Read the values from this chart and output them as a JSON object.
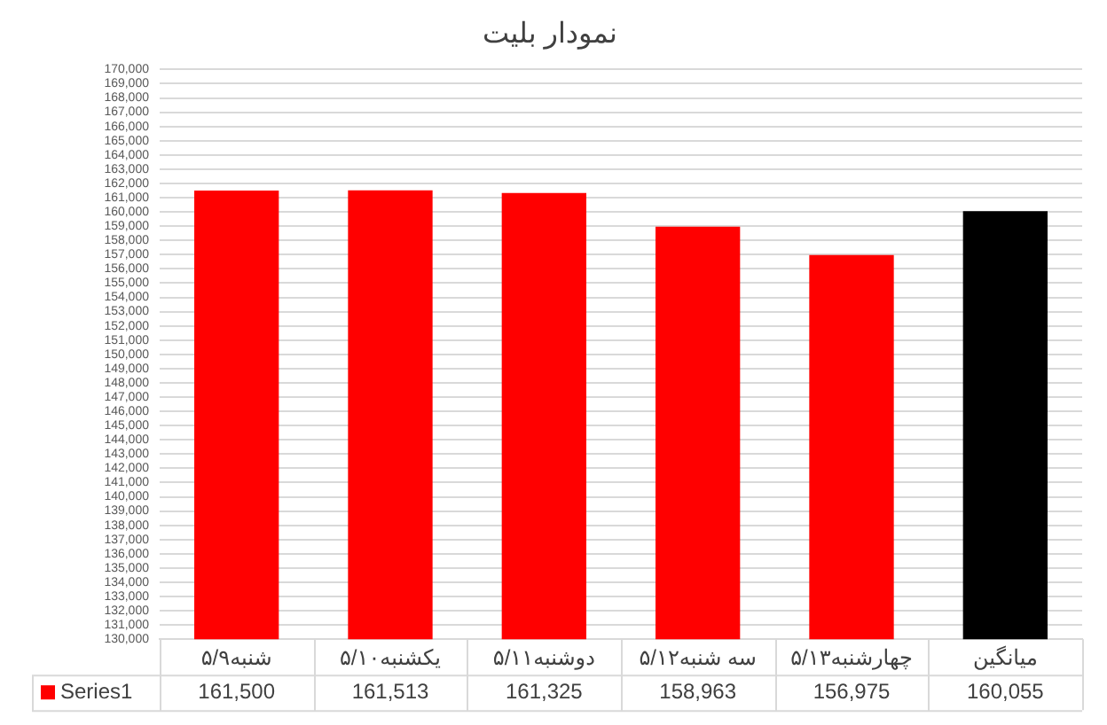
{
  "chart_data": {
    "type": "bar",
    "title": "نمودار بلیت",
    "categories": [
      "شنبه۵/۹",
      "یکشنبه۵/۱۰",
      "دوشنبه۵/۱۱",
      "سه شنبه۵/۱۲",
      "چهارشنبه۵/۱۳",
      "میانگین"
    ],
    "series": [
      {
        "name": "Series1",
        "colors": [
          "#ff0000",
          "#ff0000",
          "#ff0000",
          "#ff0000",
          "#ff0000",
          "#000000"
        ],
        "values": [
          161500,
          161513,
          161325,
          158963,
          156975,
          160055
        ],
        "value_labels": [
          "161,500",
          "161,513",
          "161,325",
          "158,963",
          "156,975",
          "160,055"
        ]
      }
    ],
    "ylim": [
      130000,
      170000
    ],
    "yticks": [
      {
        "value": 130000,
        "label": "130,000"
      },
      {
        "value": 131000,
        "label": "131,000"
      },
      {
        "value": 132000,
        "label": "132,000"
      },
      {
        "value": 133000,
        "label": "133,000"
      },
      {
        "value": 134000,
        "label": "134,000"
      },
      {
        "value": 135000,
        "label": "135,000"
      },
      {
        "value": 136000,
        "label": "136,000"
      },
      {
        "value": 137000,
        "label": "137,000"
      },
      {
        "value": 138000,
        "label": "138,000"
      },
      {
        "value": 139000,
        "label": "139,000"
      },
      {
        "value": 140000,
        "label": "140,000"
      },
      {
        "value": 141000,
        "label": "141,000"
      },
      {
        "value": 142000,
        "label": "142,000"
      },
      {
        "value": 143000,
        "label": "143,000"
      },
      {
        "value": 144000,
        "label": "144,000"
      },
      {
        "value": 145000,
        "label": "145,000"
      },
      {
        "value": 146000,
        "label": "146,000"
      },
      {
        "value": 147000,
        "label": "147,000"
      },
      {
        "value": 148000,
        "label": "148,000"
      },
      {
        "value": 149000,
        "label": "149,000"
      },
      {
        "value": 150000,
        "label": "150,000"
      },
      {
        "value": 151000,
        "label": "151,000"
      },
      {
        "value": 152000,
        "label": "152,000"
      },
      {
        "value": 153000,
        "label": "153,000"
      },
      {
        "value": 154000,
        "label": "154,000"
      },
      {
        "value": 155000,
        "label": "155,000"
      },
      {
        "value": 156000,
        "label": "156,000"
      },
      {
        "value": 157000,
        "label": "157,000"
      },
      {
        "value": 158000,
        "label": "158,000"
      },
      {
        "value": 159000,
        "label": "159,000"
      },
      {
        "value": 160000,
        "label": "160,000"
      },
      {
        "value": 161000,
        "label": "161,000"
      },
      {
        "value": 162000,
        "label": "162,000"
      },
      {
        "value": 163000,
        "label": "163,000"
      },
      {
        "value": 164000,
        "label": "164,000"
      },
      {
        "value": 165000,
        "label": "165,000"
      },
      {
        "value": 166000,
        "label": "166,000"
      },
      {
        "value": 167000,
        "label": "167,000"
      },
      {
        "value": 168000,
        "label": "168,000"
      },
      {
        "value": 169000,
        "label": "169,000"
      },
      {
        "value": 170000,
        "label": "170,000"
      }
    ],
    "grid": "y",
    "legend": "bottom left"
  }
}
